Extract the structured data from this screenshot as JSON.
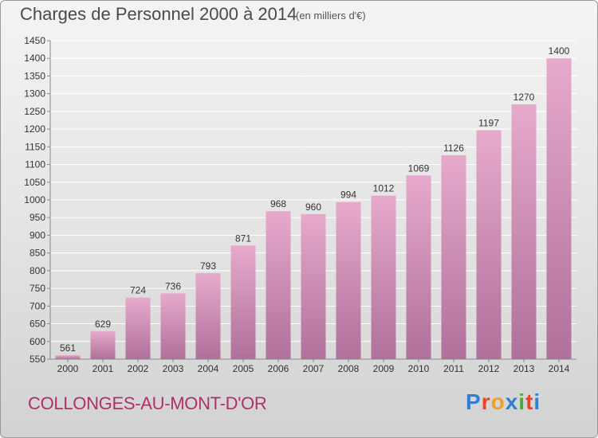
{
  "header": {
    "title": "Charges de Personnel 2000 à 2014",
    "subtitle": "(en milliers d'€)"
  },
  "footer": {
    "commune": "COLLONGES-AU-MONT-D'OR",
    "logo_text": "Proxiti",
    "logo_colors": [
      "#2f7fd6",
      "#e8452c",
      "#f0a020",
      "#2f7fd6",
      "#4caa3c",
      "#e8452c",
      "#2f7fd6"
    ]
  },
  "colors": {
    "bar_top": "#e7a9cc",
    "bar_bottom": "#b0709a",
    "grid": "#ffffff",
    "text": "#333333"
  },
  "chart_data": {
    "type": "bar",
    "categories": [
      "2000",
      "2001",
      "2002",
      "2003",
      "2004",
      "2005",
      "2006",
      "2007",
      "2008",
      "2009",
      "2010",
      "2011",
      "2012",
      "2013",
      "2014"
    ],
    "values": [
      561,
      629,
      724,
      736,
      793,
      871,
      968,
      960,
      994,
      1012,
      1069,
      1126,
      1197,
      1270,
      1400
    ],
    "ylim": [
      550,
      1450
    ],
    "yticks": [
      550,
      600,
      650,
      700,
      750,
      800,
      850,
      900,
      950,
      1000,
      1050,
      1100,
      1150,
      1200,
      1250,
      1300,
      1350,
      1400,
      1450
    ],
    "grid": true
  }
}
